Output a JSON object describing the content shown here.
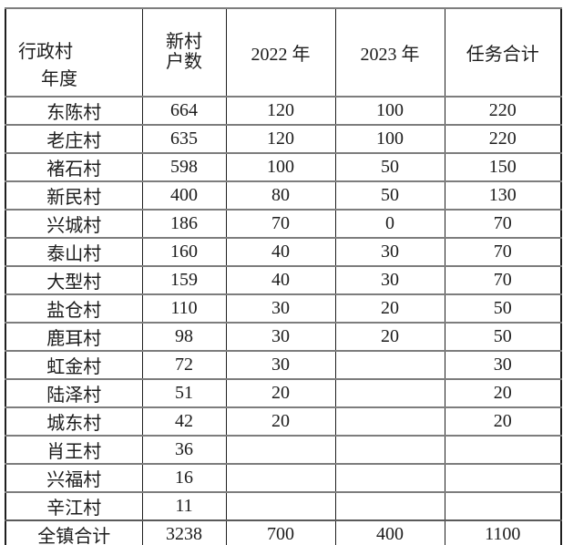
{
  "page": {
    "background": "#ffffff"
  },
  "table": {
    "header": {
      "axis_row_label": "行政村",
      "axis_col_label": "年度",
      "households_line1": "新村",
      "households_line2": "户数",
      "year_2022": "2022 年",
      "year_2023": "2023 年",
      "task_total": "任务合计"
    },
    "rows": [
      [
        "东陈村",
        "664",
        "120",
        "100",
        "220"
      ],
      [
        "老庄村",
        "635",
        "120",
        "100",
        "220"
      ],
      [
        "褚石村",
        "598",
        "100",
        "50",
        "150"
      ],
      [
        "新民村",
        "400",
        "80",
        "50",
        "130"
      ],
      [
        "兴城村",
        "186",
        "70",
        "0",
        "70"
      ],
      [
        "泰山村",
        "160",
        "40",
        "30",
        "70"
      ],
      [
        "大型村",
        "159",
        "40",
        "30",
        "70"
      ],
      [
        "盐仓村",
        "110",
        "30",
        "20",
        "50"
      ],
      [
        "鹿耳村",
        "98",
        "30",
        "20",
        "50"
      ],
      [
        "虹金村",
        "72",
        "30",
        "",
        "30"
      ],
      [
        "陆泽村",
        "51",
        "20",
        "",
        "20"
      ],
      [
        "城东村",
        "42",
        "20",
        "",
        "20"
      ],
      [
        "肖王村",
        "36",
        "",
        "",
        ""
      ],
      [
        "兴福村",
        "16",
        "",
        "",
        ""
      ],
      [
        "辛江村",
        "11",
        "",
        "",
        ""
      ]
    ],
    "footer": [
      "全镇合计",
      "3238",
      "700",
      "400",
      "1100"
    ],
    "colors": {
      "grid_vertical": "#1f1f1f",
      "grid_horizontal": "#7d7d7d",
      "text": "#1c1c1c"
    }
  }
}
